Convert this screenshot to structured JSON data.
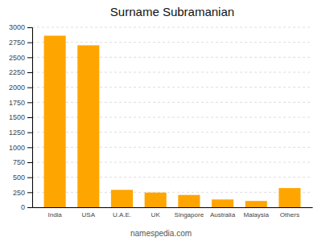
{
  "chart_data": {
    "type": "bar",
    "title": "Surname Subramanian",
    "categories": [
      "India",
      "USA",
      "U.A.E.",
      "UK",
      "Singapore",
      "Australia",
      "Malaysia",
      "Others"
    ],
    "values": [
      2860,
      2700,
      290,
      245,
      205,
      130,
      105,
      320
    ],
    "color": "#FFA500",
    "ylim": [
      0,
      3000
    ],
    "yticks": [
      0,
      250,
      500,
      750,
      1000,
      1250,
      1500,
      1750,
      2000,
      2250,
      2500,
      2750,
      3000
    ],
    "grid": true,
    "annotations": [
      "namespedia.com"
    ]
  }
}
